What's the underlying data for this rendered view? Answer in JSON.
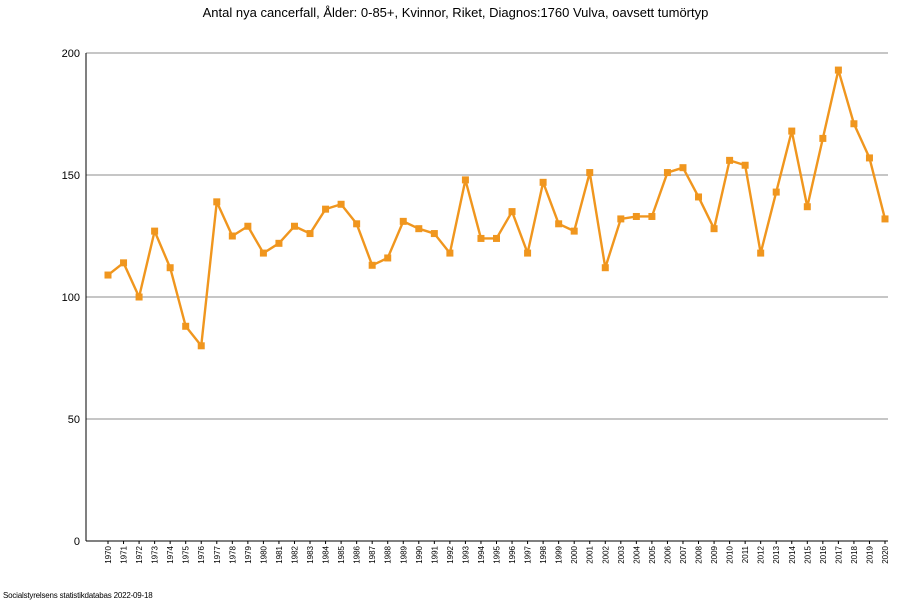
{
  "chart_data": {
    "type": "line",
    "title": "Antal nya cancerfall, Ålder: 0-85+, Kvinnor, Riket, Diagnos:1760 Vulva, oavsett tumörtyp",
    "xlabel": "",
    "ylabel": "",
    "ylim": [
      0,
      200
    ],
    "yticks": [
      0,
      50,
      100,
      150,
      200
    ],
    "grid": true,
    "legend": "none",
    "categories": [
      "1970",
      "1971",
      "1972",
      "1973",
      "1974",
      "1975",
      "1976",
      "1977",
      "1978",
      "1979",
      "1980",
      "1981",
      "1982",
      "1983",
      "1984",
      "1985",
      "1986",
      "1987",
      "1988",
      "1989",
      "1990",
      "1991",
      "1992",
      "1993",
      "1994",
      "1995",
      "1996",
      "1997",
      "1998",
      "1999",
      "2000",
      "2001",
      "2002",
      "2003",
      "2004",
      "2005",
      "2006",
      "2007",
      "2008",
      "2009",
      "2010",
      "2011",
      "2012",
      "2013",
      "2014",
      "2015",
      "2016",
      "2017",
      "2018",
      "2019",
      "2020"
    ],
    "series": [
      {
        "name": "Antal nya cancerfall",
        "color": "#f0961e",
        "values": [
          109,
          114,
          100,
          127,
          112,
          88,
          80,
          139,
          125,
          129,
          118,
          122,
          129,
          126,
          136,
          138,
          130,
          113,
          116,
          131,
          128,
          126,
          118,
          148,
          124,
          124,
          135,
          118,
          147,
          130,
          127,
          151,
          112,
          132,
          133,
          133,
          151,
          153,
          141,
          128,
          156,
          154,
          118,
          143,
          168,
          137,
          165,
          193,
          171,
          157,
          132
        ]
      }
    ]
  },
  "footer": {
    "source": "Socialstyrelsens statistikdatabas 2022-09-18"
  }
}
